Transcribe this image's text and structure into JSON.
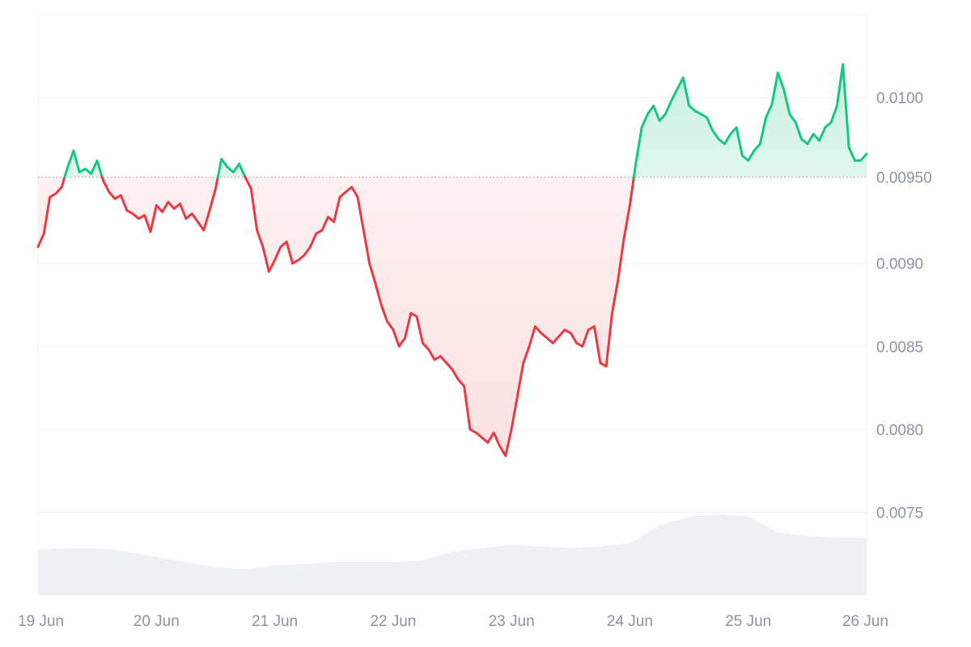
{
  "chart_data": {
    "type": "line",
    "title": "",
    "xlabel": "",
    "ylabel": "",
    "baseline": 0.00952,
    "ylim": [
      0.007,
      0.0105
    ],
    "y_ticks": [
      0.0075,
      0.008,
      0.0085,
      0.009,
      0.0095,
      0.01
    ],
    "y_tick_labels": [
      "0.0075",
      "0.0080",
      "0.0085",
      "0.0090",
      "0.00950",
      "0.0100"
    ],
    "x_range_days": [
      0,
      7
    ],
    "x_ticks": [
      0,
      1,
      2,
      3,
      4,
      5,
      6,
      7
    ],
    "x_tick_labels": [
      "19 Jun",
      "20 Jun",
      "21 Jun",
      "22 Jun",
      "23 Jun",
      "24 Jun",
      "25 Jun",
      "26 Jun"
    ],
    "colors": {
      "up": "#16c784",
      "down": "#ea3943",
      "up_fill": "#c9f1df",
      "down_fill": "#fbe1e2",
      "volume": "#eef0f3",
      "grid": "#eff1f4",
      "baseline": "#9aa0a8"
    },
    "series": [
      {
        "x": [
          0,
          0.05,
          0.1,
          0.15,
          0.2,
          0.25,
          0.3,
          0.35,
          0.4,
          0.45,
          0.5,
          0.55,
          0.6,
          0.65,
          0.7,
          0.75,
          0.8,
          0.85,
          0.9,
          0.95,
          1.0,
          1.05,
          1.1,
          1.15,
          1.2,
          1.25,
          1.3,
          1.35,
          1.4,
          1.45,
          1.5,
          1.55,
          1.6,
          1.65,
          1.7,
          1.75,
          1.8,
          1.85,
          1.9,
          1.95,
          2.0,
          2.05,
          2.1,
          2.15,
          2.2,
          2.25,
          2.3,
          2.35,
          2.4,
          2.45,
          2.5,
          2.55,
          2.6,
          2.65,
          2.7,
          2.75,
          2.8,
          2.85,
          2.9,
          2.95,
          3.0,
          3.05,
          3.1,
          3.15,
          3.2,
          3.25,
          3.3,
          3.35,
          3.4,
          3.45,
          3.5,
          3.55,
          3.6,
          3.65,
          3.7,
          3.75,
          3.8,
          3.85,
          3.9,
          3.95,
          4.0,
          4.05,
          4.1,
          4.15,
          4.2,
          4.25,
          4.3,
          4.35,
          4.4,
          4.45,
          4.5,
          4.55,
          4.6,
          4.65,
          4.7,
          4.75,
          4.8,
          4.85,
          4.9,
          4.95,
          5.0,
          5.05,
          5.1,
          5.15,
          5.2,
          5.25,
          5.3,
          5.35,
          5.4,
          5.45,
          5.5,
          5.55,
          5.6,
          5.65,
          5.7,
          5.75,
          5.8,
          5.85,
          5.9,
          5.95,
          6.0,
          6.05,
          6.1,
          6.15,
          6.2,
          6.25,
          6.3,
          6.35,
          6.4,
          6.45,
          6.5,
          6.55,
          6.6,
          6.65,
          6.7,
          6.75,
          6.8,
          6.85,
          6.9,
          6.95,
          7.0
        ],
        "values": [
          0.0091,
          0.00918,
          0.0094,
          0.00942,
          0.00946,
          0.00958,
          0.00968,
          0.00955,
          0.00957,
          0.00954,
          0.00962,
          0.0095,
          0.00943,
          0.00939,
          0.00941,
          0.00932,
          0.0093,
          0.00927,
          0.00929,
          0.00919,
          0.00935,
          0.00931,
          0.00937,
          0.00933,
          0.00936,
          0.00927,
          0.0093,
          0.00925,
          0.0092,
          0.00932,
          0.00945,
          0.00963,
          0.00958,
          0.00955,
          0.0096,
          0.00952,
          0.00945,
          0.0092,
          0.0091,
          0.00895,
          0.00902,
          0.0091,
          0.00913,
          0.009,
          0.00902,
          0.00905,
          0.0091,
          0.00918,
          0.0092,
          0.00928,
          0.00925,
          0.0094,
          0.00943,
          0.00946,
          0.0094,
          0.0092,
          0.009,
          0.00888,
          0.00875,
          0.00865,
          0.0086,
          0.0085,
          0.00855,
          0.0087,
          0.00868,
          0.00852,
          0.00848,
          0.00842,
          0.00844,
          0.0084,
          0.00836,
          0.0083,
          0.00826,
          0.008,
          0.00798,
          0.00795,
          0.00792,
          0.00798,
          0.0079,
          0.00784,
          0.008,
          0.0082,
          0.0084,
          0.0085,
          0.00862,
          0.00858,
          0.00855,
          0.00852,
          0.00856,
          0.0086,
          0.00858,
          0.00852,
          0.0085,
          0.0086,
          0.00862,
          0.0084,
          0.00838,
          0.0087,
          0.0089,
          0.00915,
          0.00935,
          0.0096,
          0.00982,
          0.0099,
          0.00995,
          0.00986,
          0.0099,
          0.00998,
          0.01005,
          0.01012,
          0.00995,
          0.00992,
          0.0099,
          0.00988,
          0.0098,
          0.00975,
          0.00972,
          0.00978,
          0.00982,
          0.00965,
          0.00962,
          0.00968,
          0.00972,
          0.00988,
          0.00996,
          0.01015,
          0.01005,
          0.0099,
          0.00985,
          0.00975,
          0.00972,
          0.00978,
          0.00974,
          0.00982,
          0.00985,
          0.00995,
          0.0102,
          0.0097,
          0.00962,
          0.00962,
          0.00966
        ]
      }
    ],
    "volume": {
      "x": [
        0,
        0.25,
        0.5,
        0.75,
        1.0,
        1.25,
        1.5,
        1.75,
        2.0,
        2.25,
        2.5,
        2.75,
        3.0,
        3.25,
        3.5,
        3.75,
        4.0,
        4.25,
        4.5,
        4.75,
        5.0,
        5.25,
        5.5,
        5.75,
        6.0,
        6.25,
        6.5,
        6.75,
        7.0
      ],
      "values": [
        0.26,
        0.27,
        0.27,
        0.25,
        0.22,
        0.19,
        0.16,
        0.15,
        0.17,
        0.18,
        0.19,
        0.19,
        0.19,
        0.2,
        0.25,
        0.27,
        0.29,
        0.28,
        0.27,
        0.28,
        0.3,
        0.4,
        0.45,
        0.46,
        0.45,
        0.36,
        0.34,
        0.33,
        0.33
      ]
    }
  }
}
